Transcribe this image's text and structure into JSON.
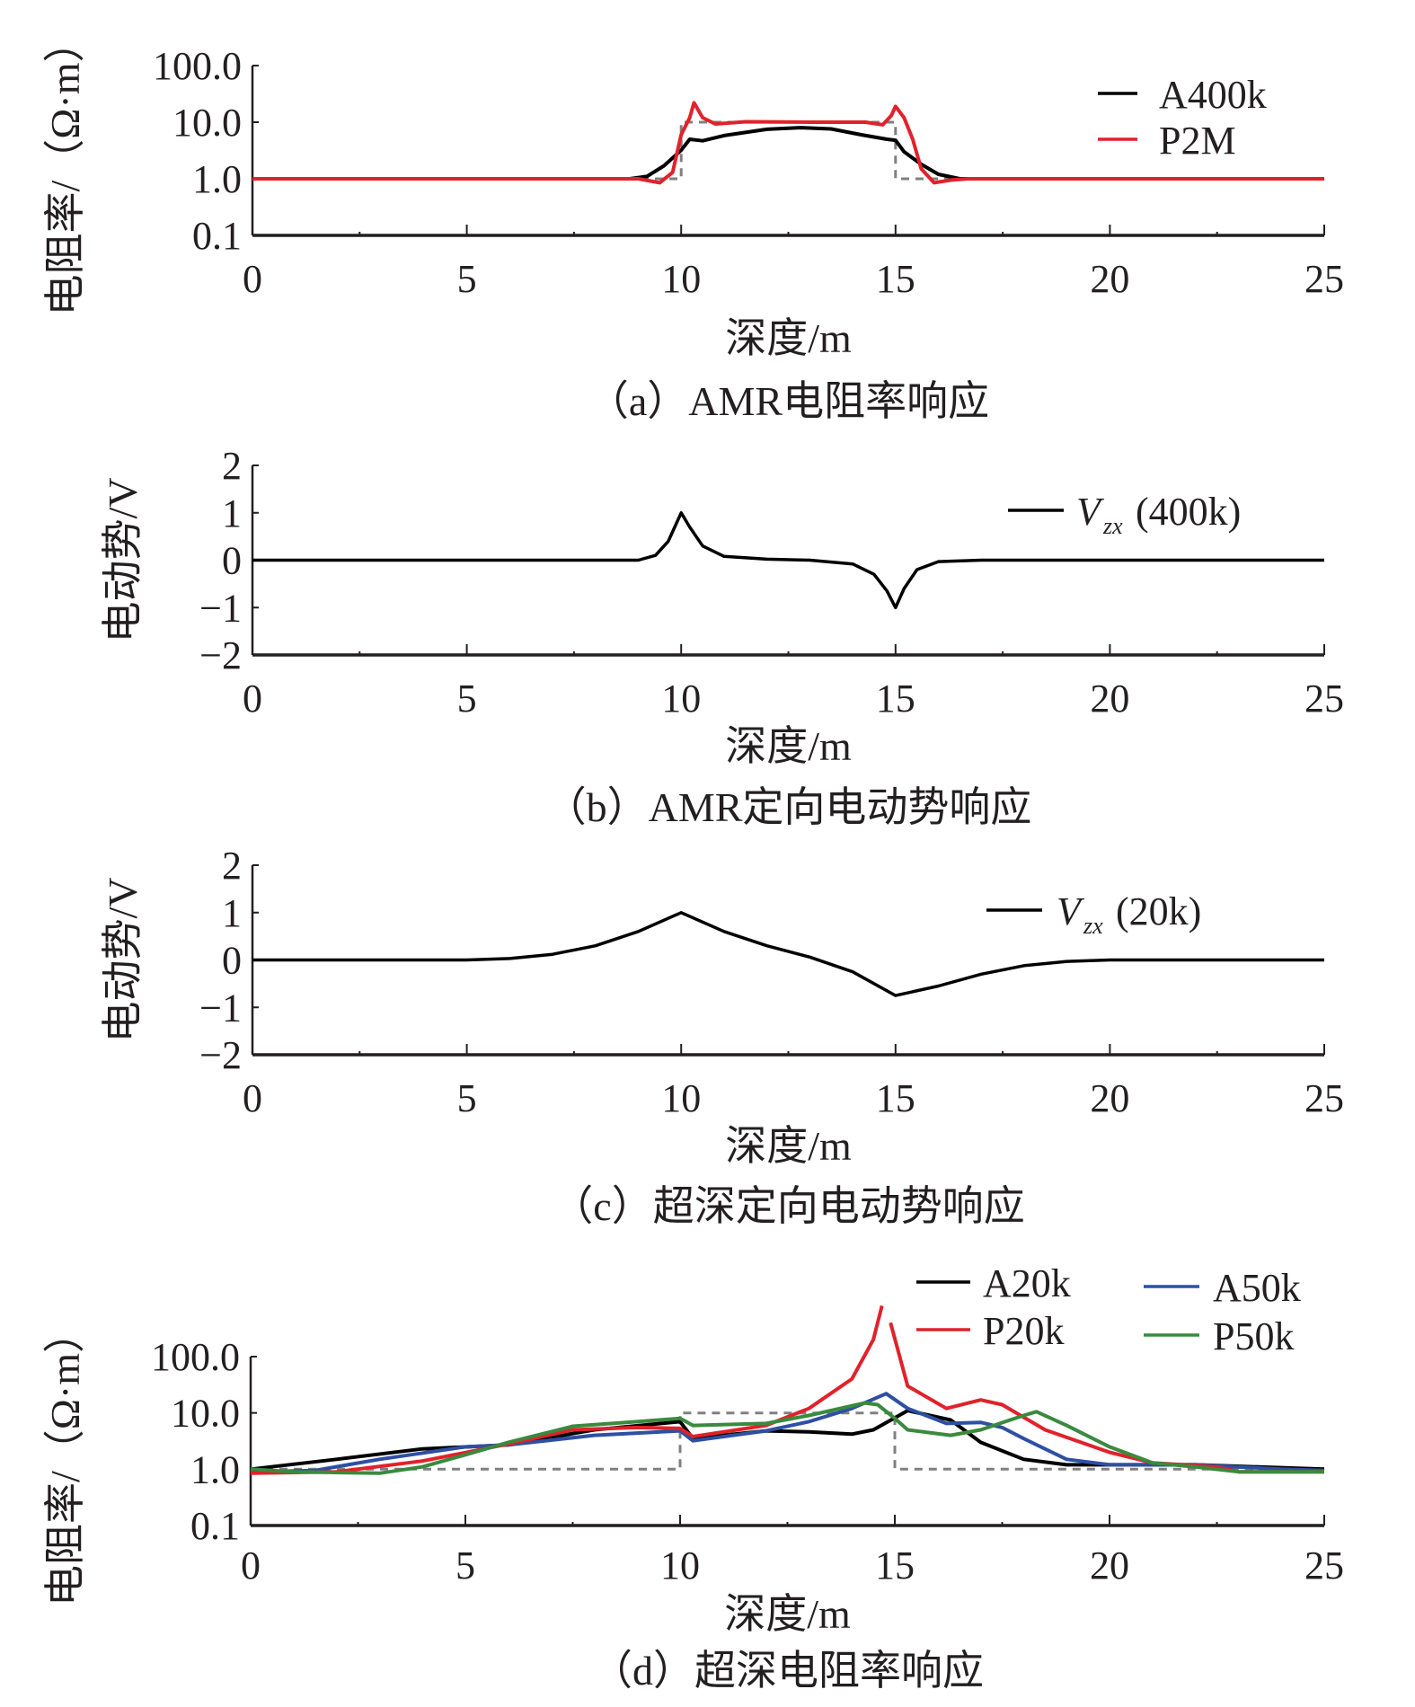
{
  "chart_data": [
    {
      "id": "a",
      "type": "line",
      "caption": "（a）AMR电阻率响应",
      "xlabel": "深度/m",
      "ylabel": "电阻率/（Ω·m）",
      "xlim": [
        0,
        25
      ],
      "ylim": [
        0.1,
        100
      ],
      "yscale": "log",
      "xticks": [
        "0",
        "5",
        "10",
        "15",
        "20",
        "25"
      ],
      "yticks": [
        "100.0",
        "10.0",
        "1.0",
        "0.1"
      ],
      "legend_position": "top-right",
      "model": {
        "style": "dashed",
        "color": "#808080",
        "points": [
          [
            0,
            1
          ],
          [
            10,
            1
          ],
          [
            10,
            10
          ],
          [
            15,
            10
          ],
          [
            15,
            1
          ],
          [
            25,
            1
          ]
        ]
      },
      "series": [
        {
          "name": "A400k",
          "color": "#000000",
          "points": [
            [
              0,
              1
            ],
            [
              8.8,
              1
            ],
            [
              9.2,
              1.1
            ],
            [
              9.6,
              1.7
            ],
            [
              10,
              3.2
            ],
            [
              10.2,
              5
            ],
            [
              10.5,
              4.7
            ],
            [
              11,
              5.8
            ],
            [
              12,
              7.5
            ],
            [
              12.8,
              8
            ],
            [
              13.5,
              7.6
            ],
            [
              14.2,
              6
            ],
            [
              14.8,
              5
            ],
            [
              15,
              4.8
            ],
            [
              15.2,
              3
            ],
            [
              15.6,
              1.8
            ],
            [
              16,
              1.2
            ],
            [
              16.5,
              1
            ],
            [
              25,
              1
            ]
          ]
        },
        {
          "name": "P2M",
          "color": "#e0222b",
          "points": [
            [
              0,
              1
            ],
            [
              9,
              1
            ],
            [
              9.5,
              0.85
            ],
            [
              9.8,
              1.3
            ],
            [
              10,
              6
            ],
            [
              10.2,
              12
            ],
            [
              10.3,
              22
            ],
            [
              10.5,
              12
            ],
            [
              10.8,
              9.3
            ],
            [
              11.5,
              10.2
            ],
            [
              13,
              10
            ],
            [
              14.3,
              10
            ],
            [
              14.7,
              9
            ],
            [
              14.9,
              13
            ],
            [
              15,
              19
            ],
            [
              15.2,
              12
            ],
            [
              15.4,
              5
            ],
            [
              15.6,
              1.5
            ],
            [
              15.9,
              0.85
            ],
            [
              16.3,
              0.95
            ],
            [
              16.7,
              1
            ],
            [
              25,
              1
            ]
          ]
        }
      ]
    },
    {
      "id": "b",
      "type": "line",
      "caption": "（b）AMR定向电动势响应",
      "xlabel": "深度/m",
      "ylabel": "电动势/V",
      "xlim": [
        0,
        25
      ],
      "ylim": [
        -2,
        2
      ],
      "yscale": "linear",
      "xticks": [
        "0",
        "5",
        "10",
        "15",
        "20",
        "25"
      ],
      "yticks": [
        "2",
        "1",
        "0",
        "−1",
        "−2"
      ],
      "legend_position": "top-right",
      "series": [
        {
          "name": "V",
          "sub": "zx",
          "suffix": "(400k)",
          "color": "#000000",
          "points": [
            [
              0,
              0
            ],
            [
              9,
              0
            ],
            [
              9.4,
              0.1
            ],
            [
              9.7,
              0.4
            ],
            [
              10,
              1
            ],
            [
              10.2,
              0.7
            ],
            [
              10.5,
              0.3
            ],
            [
              11,
              0.08
            ],
            [
              12,
              0.02
            ],
            [
              13,
              0
            ],
            [
              14,
              -0.08
            ],
            [
              14.5,
              -0.3
            ],
            [
              14.8,
              -0.65
            ],
            [
              15,
              -1
            ],
            [
              15.2,
              -0.6
            ],
            [
              15.5,
              -0.2
            ],
            [
              16,
              -0.03
            ],
            [
              17,
              0
            ],
            [
              25,
              0
            ]
          ]
        }
      ]
    },
    {
      "id": "c",
      "type": "line",
      "caption": "（c）超深定向电动势响应",
      "xlabel": "深度/m",
      "ylabel": "电动势/V",
      "xlim": [
        0,
        25
      ],
      "ylim": [
        -2,
        2
      ],
      "yscale": "linear",
      "xticks": [
        "0",
        "5",
        "10",
        "15",
        "20",
        "25"
      ],
      "yticks": [
        "2",
        "1",
        "0",
        "−1",
        "−2"
      ],
      "legend_position": "top-right",
      "series": [
        {
          "name": "V",
          "sub": "zx",
          "suffix": "(20k)",
          "color": "#000000",
          "points": [
            [
              0,
              0
            ],
            [
              5,
              0
            ],
            [
              6,
              0.03
            ],
            [
              7,
              0.12
            ],
            [
              8,
              0.3
            ],
            [
              9,
              0.6
            ],
            [
              10,
              1
            ],
            [
              11,
              0.6
            ],
            [
              12,
              0.3
            ],
            [
              13,
              0.06
            ],
            [
              14,
              -0.25
            ],
            [
              15,
              -0.75
            ],
            [
              16,
              -0.55
            ],
            [
              17,
              -0.3
            ],
            [
              18,
              -0.12
            ],
            [
              19,
              -0.03
            ],
            [
              20,
              0
            ],
            [
              25,
              0
            ]
          ]
        }
      ]
    },
    {
      "id": "d",
      "type": "line",
      "caption": "（d）超深电阻率响应",
      "xlabel": "深度/m",
      "ylabel": "电阻率/（Ω·m）",
      "xlim": [
        0,
        25
      ],
      "ylim": [
        0.1,
        100
      ],
      "yscale": "log",
      "xticks": [
        "0",
        "5",
        "10",
        "15",
        "20",
        "25"
      ],
      "yticks": [
        "100.0",
        "10.0",
        "1.0",
        "0.1"
      ],
      "legend_position": "top-right",
      "model": {
        "style": "dashed",
        "color": "#808080",
        "points": [
          [
            0,
            1
          ],
          [
            10,
            1
          ],
          [
            10,
            10
          ],
          [
            15,
            10
          ],
          [
            15,
            1
          ],
          [
            25,
            1
          ]
        ]
      },
      "series": [
        {
          "name": "A20k",
          "color": "#000000",
          "points": [
            [
              0,
              1
            ],
            [
              2,
              1.5
            ],
            [
              4,
              2.3
            ],
            [
              6,
              2.7
            ],
            [
              8,
              5
            ],
            [
              10,
              7
            ],
            [
              10.3,
              3.5
            ],
            [
              11,
              4
            ],
            [
              12,
              4.8
            ],
            [
              13,
              4.6
            ],
            [
              14,
              4.2
            ],
            [
              14.5,
              5
            ],
            [
              15.3,
              11
            ],
            [
              16.3,
              7.5
            ],
            [
              17,
              3
            ],
            [
              18,
              1.5
            ],
            [
              19,
              1.2
            ],
            [
              22,
              1.2
            ],
            [
              25,
              1
            ]
          ]
        },
        {
          "name": "A50k",
          "color": "#2e4fa3",
          "points": [
            [
              0,
              0.9
            ],
            [
              1.5,
              0.95
            ],
            [
              3,
              1.5
            ],
            [
              5,
              2.5
            ],
            [
              6,
              2.7
            ],
            [
              8,
              4
            ],
            [
              10,
              4.8
            ],
            [
              10.3,
              3.2
            ],
            [
              12,
              4.8
            ],
            [
              13,
              7
            ],
            [
              14,
              12
            ],
            [
              14.8,
              22
            ],
            [
              15.3,
              12
            ],
            [
              16.2,
              6.5
            ],
            [
              17,
              6.8
            ],
            [
              17.5,
              5.5
            ],
            [
              18,
              3.5
            ],
            [
              19,
              1.5
            ],
            [
              20,
              1.2
            ],
            [
              22,
              1.2
            ],
            [
              24,
              1
            ],
            [
              25,
              0.95
            ]
          ]
        },
        {
          "name": "P20k",
          "color": "#e0222b",
          "points": [
            [
              0,
              0.85
            ],
            [
              2,
              0.9
            ],
            [
              4,
              1.4
            ],
            [
              6,
              2.8
            ],
            [
              7.5,
              5
            ],
            [
              9,
              5.5
            ],
            [
              10,
              5.3
            ],
            [
              10.3,
              3.8
            ],
            [
              12,
              6
            ],
            [
              13,
              12
            ],
            [
              14,
              40
            ],
            [
              14.5,
              200
            ],
            [
              14.7,
              800
            ],
            null,
            [
              14.9,
              400
            ],
            [
              15.3,
              30
            ],
            [
              16.2,
              12
            ],
            [
              17,
              17
            ],
            [
              17.5,
              14
            ],
            [
              18.5,
              5
            ],
            [
              20,
              2
            ],
            [
              21,
              1.3
            ],
            [
              22.5,
              1.1
            ],
            [
              23,
              0.9
            ],
            [
              25,
              0.9
            ]
          ]
        },
        {
          "name": "P50k",
          "color": "#3a8a3e",
          "points": [
            [
              0,
              1
            ],
            [
              1,
              0.9
            ],
            [
              3,
              0.85
            ],
            [
              4,
              1.1
            ],
            [
              5,
              1.8
            ],
            [
              6,
              3
            ],
            [
              7.5,
              5.8
            ],
            [
              9,
              7
            ],
            [
              10,
              8
            ],
            [
              10.3,
              6
            ],
            [
              12,
              6.5
            ],
            [
              13,
              9
            ],
            [
              14.3,
              15
            ],
            [
              14.6,
              14
            ],
            [
              15,
              8
            ],
            [
              15.3,
              5
            ],
            [
              16.3,
              4
            ],
            [
              17,
              5
            ],
            [
              18,
              9
            ],
            [
              18.3,
              10.5
            ],
            [
              19,
              6
            ],
            [
              20,
              2.5
            ],
            [
              21,
              1.3
            ],
            [
              22,
              1.1
            ],
            [
              23,
              0.9
            ],
            [
              25,
              0.9
            ]
          ]
        }
      ]
    }
  ]
}
